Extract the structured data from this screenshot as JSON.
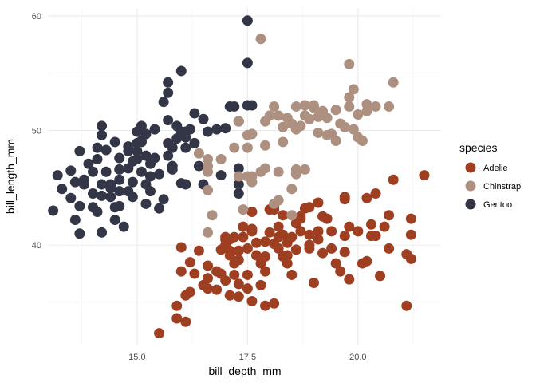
{
  "chart_data": {
    "type": "scatter",
    "xlabel": "bill_depth_mm",
    "ylabel": "bill_length_mm",
    "xlim": [
      12.98,
      21.88
    ],
    "ylim": [
      31.3,
      60.7
    ],
    "x_ticks": [
      15.0,
      17.5,
      20.0
    ],
    "x_tick_labels": [
      "15.0",
      "17.5",
      "20.0"
    ],
    "y_ticks": [
      40,
      50,
      60
    ],
    "y_tick_labels": [
      "40",
      "50",
      "60"
    ],
    "grid": true,
    "legend": {
      "title": "species",
      "placement": "right"
    },
    "series": [
      {
        "name": "Adelie",
        "color": "#9F3F22",
        "points": [
          [
            15.5,
            32.3
          ],
          [
            16.1,
            33.3
          ],
          [
            15.9,
            34.7
          ],
          [
            16.1,
            35.6
          ],
          [
            16.0,
            37.7
          ],
          [
            16.2,
            35.9
          ],
          [
            16.3,
            37.5
          ],
          [
            16.6,
            38.2
          ],
          [
            16.4,
            39.5
          ],
          [
            16.6,
            37.1
          ],
          [
            16.2,
            38.5
          ],
          [
            16.6,
            36.2
          ],
          [
            16.8,
            36.1
          ],
          [
            16.8,
            37.7
          ],
          [
            16.9,
            39.6
          ],
          [
            17.0,
            40.5
          ],
          [
            17.0,
            40.0
          ],
          [
            17.0,
            40.7
          ],
          [
            17.1,
            40.5
          ],
          [
            17.2,
            40.7
          ],
          [
            17.1,
            39.1
          ],
          [
            17.2,
            38.4
          ],
          [
            17.2,
            37.4
          ],
          [
            17.3,
            36.6
          ],
          [
            17.3,
            38.7
          ],
          [
            17.3,
            39.5
          ],
          [
            17.4,
            41.6
          ],
          [
            17.4,
            40.7
          ],
          [
            17.5,
            39.7
          ],
          [
            17.5,
            36.2
          ],
          [
            17.5,
            37.4
          ],
          [
            17.6,
            41.2
          ],
          [
            17.6,
            41.4
          ],
          [
            17.7,
            40.2
          ],
          [
            17.7,
            39.1
          ],
          [
            17.8,
            38.4
          ],
          [
            17.8,
            36.5
          ],
          [
            17.9,
            37.7
          ],
          [
            17.9,
            39.0
          ],
          [
            17.9,
            40.3
          ],
          [
            18.0,
            41.1
          ],
          [
            18.1,
            40.1
          ],
          [
            18.1,
            34.9
          ],
          [
            18.1,
            43.1
          ],
          [
            18.2,
            39.7
          ],
          [
            18.2,
            40.7
          ],
          [
            18.2,
            41.6
          ],
          [
            18.3,
            40.9
          ],
          [
            18.3,
            39.0
          ],
          [
            18.4,
            39.1
          ],
          [
            18.4,
            40.2
          ],
          [
            18.4,
            38.4
          ],
          [
            18.5,
            37.4
          ],
          [
            18.5,
            40.7
          ],
          [
            18.6,
            39.6
          ],
          [
            18.6,
            41.9
          ],
          [
            18.7,
            42.5
          ],
          [
            18.7,
            41.2
          ],
          [
            18.8,
            43.2
          ],
          [
            18.9,
            40.9
          ],
          [
            18.9,
            39.7
          ],
          [
            18.9,
            40.0
          ],
          [
            19.0,
            36.7
          ],
          [
            19.1,
            41.2
          ],
          [
            19.1,
            40.5
          ],
          [
            19.2,
            39.3
          ],
          [
            19.2,
            42.5
          ],
          [
            19.3,
            42.3
          ],
          [
            19.4,
            41.2
          ],
          [
            19.4,
            39.7
          ],
          [
            19.5,
            38.4
          ],
          [
            19.6,
            37.7
          ],
          [
            19.7,
            40.8
          ],
          [
            19.7,
            39.4
          ],
          [
            19.8,
            37.0
          ],
          [
            19.8,
            41.6
          ],
          [
            20.0,
            41.2
          ],
          [
            20.1,
            38.4
          ],
          [
            20.2,
            38.6
          ],
          [
            20.3,
            41.8
          ],
          [
            20.3,
            40.8
          ],
          [
            20.4,
            40.8
          ],
          [
            20.5,
            37.3
          ],
          [
            20.6,
            41.6
          ],
          [
            20.7,
            42.6
          ],
          [
            20.7,
            39.7
          ],
          [
            21.2,
            40.9
          ],
          [
            21.2,
            42.3
          ],
          [
            21.1,
            39.2
          ],
          [
            21.2,
            38.8
          ],
          [
            21.1,
            34.7
          ],
          [
            21.5,
            46.1
          ],
          [
            20.8,
            45.7
          ],
          [
            20.2,
            44.1
          ],
          [
            20.4,
            44.5
          ],
          [
            19.7,
            44.2
          ],
          [
            19.7,
            44.0
          ],
          [
            18.9,
            43.3
          ],
          [
            19.1,
            43.7
          ],
          [
            18.7,
            42.3
          ],
          [
            18.3,
            42.6
          ],
          [
            18.0,
            43.1
          ],
          [
            17.6,
            42.9
          ],
          [
            18.1,
            43.4
          ],
          [
            17.1,
            39.5
          ],
          [
            16.9,
            37.5
          ],
          [
            17.0,
            36.9
          ],
          [
            16.5,
            36.5
          ],
          [
            16.0,
            39.8
          ],
          [
            15.9,
            33.6
          ],
          [
            17.3,
            35.5
          ],
          [
            17.9,
            34.7
          ],
          [
            17.6,
            35.1
          ],
          [
            17.1,
            35.6
          ]
        ]
      },
      {
        "name": "Chinstrap",
        "color": "#AE9080",
        "points": [
          [
            17.8,
            58.0
          ],
          [
            19.8,
            55.8
          ],
          [
            20.8,
            54.2
          ],
          [
            16.4,
            48.0
          ],
          [
            16.6,
            46.9
          ],
          [
            16.9,
            47.5
          ],
          [
            16.6,
            47.5
          ],
          [
            16.6,
            46.4
          ],
          [
            16.6,
            44.8
          ],
          [
            16.7,
            42.6
          ],
          [
            16.6,
            41.1
          ],
          [
            17.2,
            48.5
          ],
          [
            17.5,
            48.5
          ],
          [
            17.6,
            49.7
          ],
          [
            17.5,
            49.6
          ],
          [
            17.3,
            50.8
          ],
          [
            17.3,
            46.0
          ],
          [
            17.6,
            46.0
          ],
          [
            17.8,
            46.4
          ],
          [
            17.9,
            46.7
          ],
          [
            17.9,
            48.7
          ],
          [
            17.9,
            50.8
          ],
          [
            18.0,
            51.3
          ],
          [
            18.1,
            52.1
          ],
          [
            18.2,
            51.3
          ],
          [
            18.3,
            49.0
          ],
          [
            18.2,
            46.4
          ],
          [
            18.3,
            50.3
          ],
          [
            18.4,
            51.1
          ],
          [
            18.5,
            50.6
          ],
          [
            18.6,
            52.1
          ],
          [
            18.6,
            46.2
          ],
          [
            18.6,
            50.1
          ],
          [
            18.7,
            50.4
          ],
          [
            18.8,
            52.2
          ],
          [
            18.8,
            51.3
          ],
          [
            18.9,
            51.0
          ],
          [
            19.0,
            52.2
          ],
          [
            19.0,
            52.0
          ],
          [
            19.1,
            49.8
          ],
          [
            19.1,
            51.2
          ],
          [
            19.2,
            51.7
          ],
          [
            19.3,
            51.1
          ],
          [
            19.3,
            49.6
          ],
          [
            19.4,
            49.7
          ],
          [
            19.5,
            49.1
          ],
          [
            19.5,
            51.8
          ],
          [
            19.6,
            50.6
          ],
          [
            19.7,
            50.3
          ],
          [
            19.8,
            52.1
          ],
          [
            19.8,
            52.9
          ],
          [
            19.9,
            53.6
          ],
          [
            20.0,
            51.4
          ],
          [
            19.9,
            50.1
          ],
          [
            20.0,
            49.4
          ],
          [
            20.1,
            49.1
          ],
          [
            20.2,
            51.7
          ],
          [
            20.2,
            52.3
          ],
          [
            20.4,
            52.1
          ],
          [
            20.7,
            52.1
          ],
          [
            17.4,
            43.1
          ],
          [
            17.5,
            46.0
          ],
          [
            17.6,
            45.5
          ],
          [
            18.2,
            43.9
          ],
          [
            18.1,
            43.6
          ],
          [
            18.5,
            44.9
          ],
          [
            18.5,
            42.6
          ],
          [
            18.6,
            46.6
          ],
          [
            18.8,
            46.6
          ]
        ]
      },
      {
        "name": "Gentoo",
        "color": "#333647",
        "points": [
          [
            13.1,
            43.0
          ],
          [
            13.2,
            46.1
          ],
          [
            13.3,
            44.9
          ],
          [
            13.5,
            46.5
          ],
          [
            13.5,
            44.1
          ],
          [
            13.6,
            45.5
          ],
          [
            13.6,
            42.2
          ],
          [
            13.7,
            41.0
          ],
          [
            13.7,
            48.2
          ],
          [
            13.8,
            45.3
          ],
          [
            13.7,
            43.4
          ],
          [
            13.9,
            47.1
          ],
          [
            13.8,
            45.7
          ],
          [
            14.0,
            44.5
          ],
          [
            14.0,
            46.4
          ],
          [
            14.0,
            43.3
          ],
          [
            14.1,
            47.5
          ],
          [
            14.2,
            45.3
          ],
          [
            14.2,
            44.3
          ],
          [
            14.1,
            42.9
          ],
          [
            14.2,
            50.4
          ],
          [
            14.3,
            48.3
          ],
          [
            14.3,
            46.4
          ],
          [
            14.4,
            45.0
          ],
          [
            14.4,
            45.3
          ],
          [
            14.5,
            43.3
          ],
          [
            14.5,
            42.2
          ],
          [
            14.5,
            49.0
          ],
          [
            14.6,
            47.6
          ],
          [
            14.6,
            45.7
          ],
          [
            14.6,
            46.6
          ],
          [
            14.6,
            44.7
          ],
          [
            14.7,
            41.6
          ],
          [
            14.8,
            46.7
          ],
          [
            14.8,
            48.2
          ],
          [
            14.8,
            48.6
          ],
          [
            14.9,
            47.3
          ],
          [
            14.9,
            45.5
          ],
          [
            15.0,
            49.9
          ],
          [
            15.0,
            48.9
          ],
          [
            15.0,
            48.2
          ],
          [
            15.0,
            47.5
          ],
          [
            15.1,
            46.4
          ],
          [
            15.1,
            50.4
          ],
          [
            15.1,
            49.0
          ],
          [
            15.2,
            47.8
          ],
          [
            15.2,
            45.3
          ],
          [
            15.2,
            49.7
          ],
          [
            15.3,
            47.1
          ],
          [
            15.3,
            46.0
          ],
          [
            15.4,
            50.1
          ],
          [
            15.4,
            47.6
          ],
          [
            15.5,
            46.2
          ],
          [
            15.6,
            52.5
          ],
          [
            15.7,
            54.2
          ],
          [
            15.7,
            53.3
          ],
          [
            15.7,
            50.9
          ],
          [
            15.7,
            48.9
          ],
          [
            15.7,
            47.8
          ],
          [
            15.8,
            46.6
          ],
          [
            15.8,
            46.9
          ],
          [
            15.9,
            49.3
          ],
          [
            15.9,
            50.4
          ],
          [
            16.0,
            49.9
          ],
          [
            16.0,
            55.2
          ],
          [
            16.1,
            49.9
          ],
          [
            16.1,
            49.4
          ],
          [
            16.1,
            48.5
          ],
          [
            16.2,
            50.1
          ],
          [
            16.3,
            51.5
          ],
          [
            16.3,
            48.9
          ],
          [
            16.4,
            46.9
          ],
          [
            16.5,
            51.0
          ],
          [
            16.6,
            49.9
          ],
          [
            16.8,
            50.1
          ],
          [
            17.0,
            50.2
          ],
          [
            16.9,
            46.1
          ],
          [
            17.3,
            45.3
          ],
          [
            17.3,
            50.8
          ],
          [
            17.2,
            52.1
          ],
          [
            17.1,
            52.1
          ],
          [
            17.5,
            59.6
          ],
          [
            17.5,
            55.9
          ],
          [
            17.3,
            46.7
          ],
          [
            17.5,
            52.2
          ],
          [
            17.6,
            52.2
          ],
          [
            17.3,
            44.5
          ],
          [
            16.5,
            45.3
          ],
          [
            16.1,
            45.3
          ],
          [
            16.0,
            45.4
          ],
          [
            15.6,
            44.0
          ],
          [
            15.5,
            43.2
          ],
          [
            15.2,
            43.6
          ],
          [
            14.2,
            41.1
          ],
          [
            15.8,
            48.5
          ],
          [
            15.3,
            44.7
          ],
          [
            14.9,
            44.2
          ],
          [
            14.8,
            44.7
          ],
          [
            14.6,
            43.4
          ],
          [
            14.4,
            44.2
          ],
          [
            14.1,
            48.5
          ],
          [
            14.2,
            49.6
          ],
          [
            15.1,
            49.1
          ]
        ]
      }
    ]
  }
}
